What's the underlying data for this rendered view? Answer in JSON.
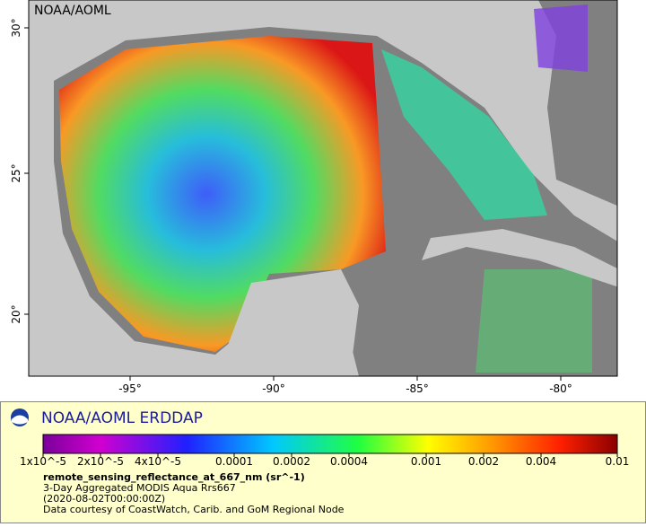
{
  "watermark": "NOAA/AOML",
  "axes": {
    "lat_labels": [
      "30°",
      "25°",
      "20°"
    ],
    "lon_labels": [
      "-95°",
      "-90°",
      "-85°",
      "-80°"
    ]
  },
  "legend": {
    "title": "NOAA/AOML ERDDAP",
    "colorbar_ticks": [
      "1x10^-5",
      "2x10^-5",
      "4x10^-5",
      "0.0001",
      "0.0002",
      "0.0004",
      "0.001",
      "0.002",
      "0.004",
      "0.01"
    ],
    "variable": "remote_sensing_reflectance_at_667_nm (sr^-1)",
    "lines": [
      "3-Day Aggregated MODIS Aqua Rrs667",
      "(2020-08-02T00:00:00Z)",
      "Data courtesy of CoastWatch, Carib. and GoM Regional Node"
    ]
  }
}
